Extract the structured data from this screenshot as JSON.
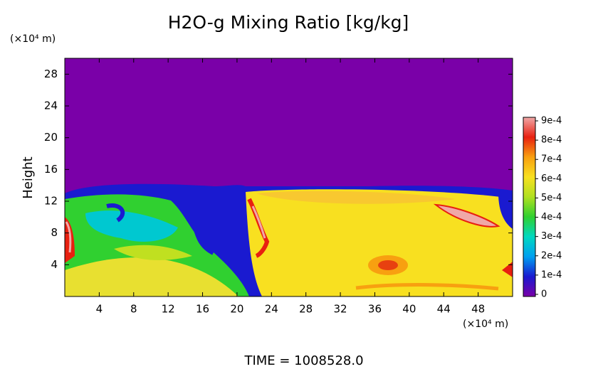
{
  "chart_data": {
    "type": "heatmap",
    "title": "H2O-g Mixing Ratio [kg/kg]",
    "y_label": "Height",
    "x_unit": "(×10⁴ m)",
    "y_unit": "(×10⁴ m)",
    "footnote": "TIME = 1008528.0",
    "xlim": [
      0,
      52
    ],
    "ylim": [
      0,
      30
    ],
    "xticks": [
      4,
      8,
      12,
      16,
      20,
      24,
      28,
      32,
      36,
      40,
      44,
      48
    ],
    "yticks": [
      4,
      8,
      12,
      16,
      20,
      24,
      28
    ],
    "colorbar": {
      "lim": [
        0,
        0.0009
      ],
      "ticks": [
        0,
        {
          "value": 0.0001,
          "label": "1e-4"
        },
        {
          "value": 0.0002,
          "label": "2e-4"
        },
        {
          "value": 0.0003,
          "label": "3e-4"
        },
        {
          "value": 0.0004,
          "label": "4e-4"
        },
        {
          "value": 0.0005,
          "label": "5e-4"
        },
        {
          "value": 0.0006,
          "label": "6e-4"
        },
        {
          "value": 0.0007,
          "label": "7e-4"
        },
        {
          "value": 0.0008,
          "label": "8e-4"
        },
        {
          "value": 0.0009,
          "label": "9e-4"
        }
      ],
      "colors": [
        "#7a00a8",
        "#1a1ad0",
        "#00a0f0",
        "#00d8c0",
        "#30d030",
        "#b0e020",
        "#f8e020",
        "#f8a010",
        "#e82010",
        "#f0a8a8"
      ]
    }
  }
}
